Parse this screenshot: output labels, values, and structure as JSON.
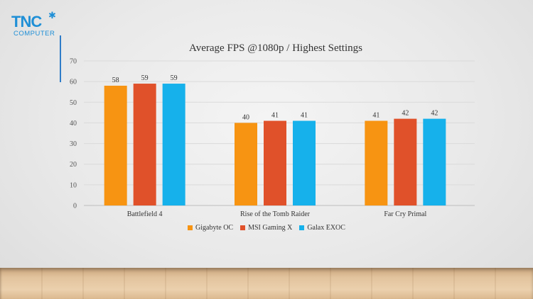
{
  "logo": {
    "main": "TNC",
    "sub": "COMPUTER",
    "star_icon": "star-icon"
  },
  "chart_data": {
    "type": "bar",
    "title": "Average FPS @1080p / Highest Settings",
    "categories": [
      "Battlefield 4",
      "Rise of the Tomb Raider",
      "Far Cry Primal"
    ],
    "series": [
      {
        "name": "Gigabyte OC",
        "color": "#f79412",
        "values": [
          58,
          40,
          41
        ]
      },
      {
        "name": "MSI Gaming X",
        "color": "#e0512a",
        "values": [
          59,
          41,
          42
        ]
      },
      {
        "name": "Galax EXOC",
        "color": "#16b1eb",
        "values": [
          59,
          41,
          42
        ]
      }
    ],
    "ylim": [
      0,
      70
    ],
    "yticks": [
      0,
      10,
      20,
      30,
      40,
      50,
      60,
      70
    ],
    "grid": true,
    "legend_position": "bottom"
  }
}
